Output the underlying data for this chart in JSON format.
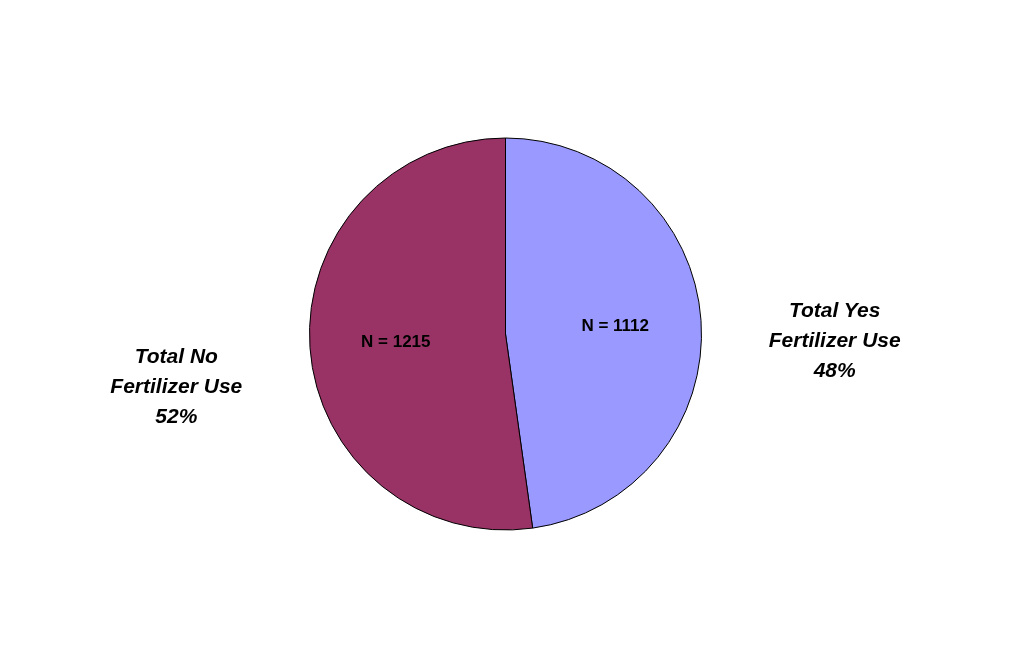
{
  "chart_data": {
    "type": "pie",
    "categories": [
      "Total Yes Fertilizer Use",
      "Total No Fertilizer Use"
    ],
    "values": [
      1112,
      1215
    ],
    "colors": [
      "#9999ff",
      "#993366"
    ],
    "value_labels": [
      "N = 1112",
      "N = 1215"
    ],
    "annotations": [
      "48%",
      "52%"
    ]
  }
}
